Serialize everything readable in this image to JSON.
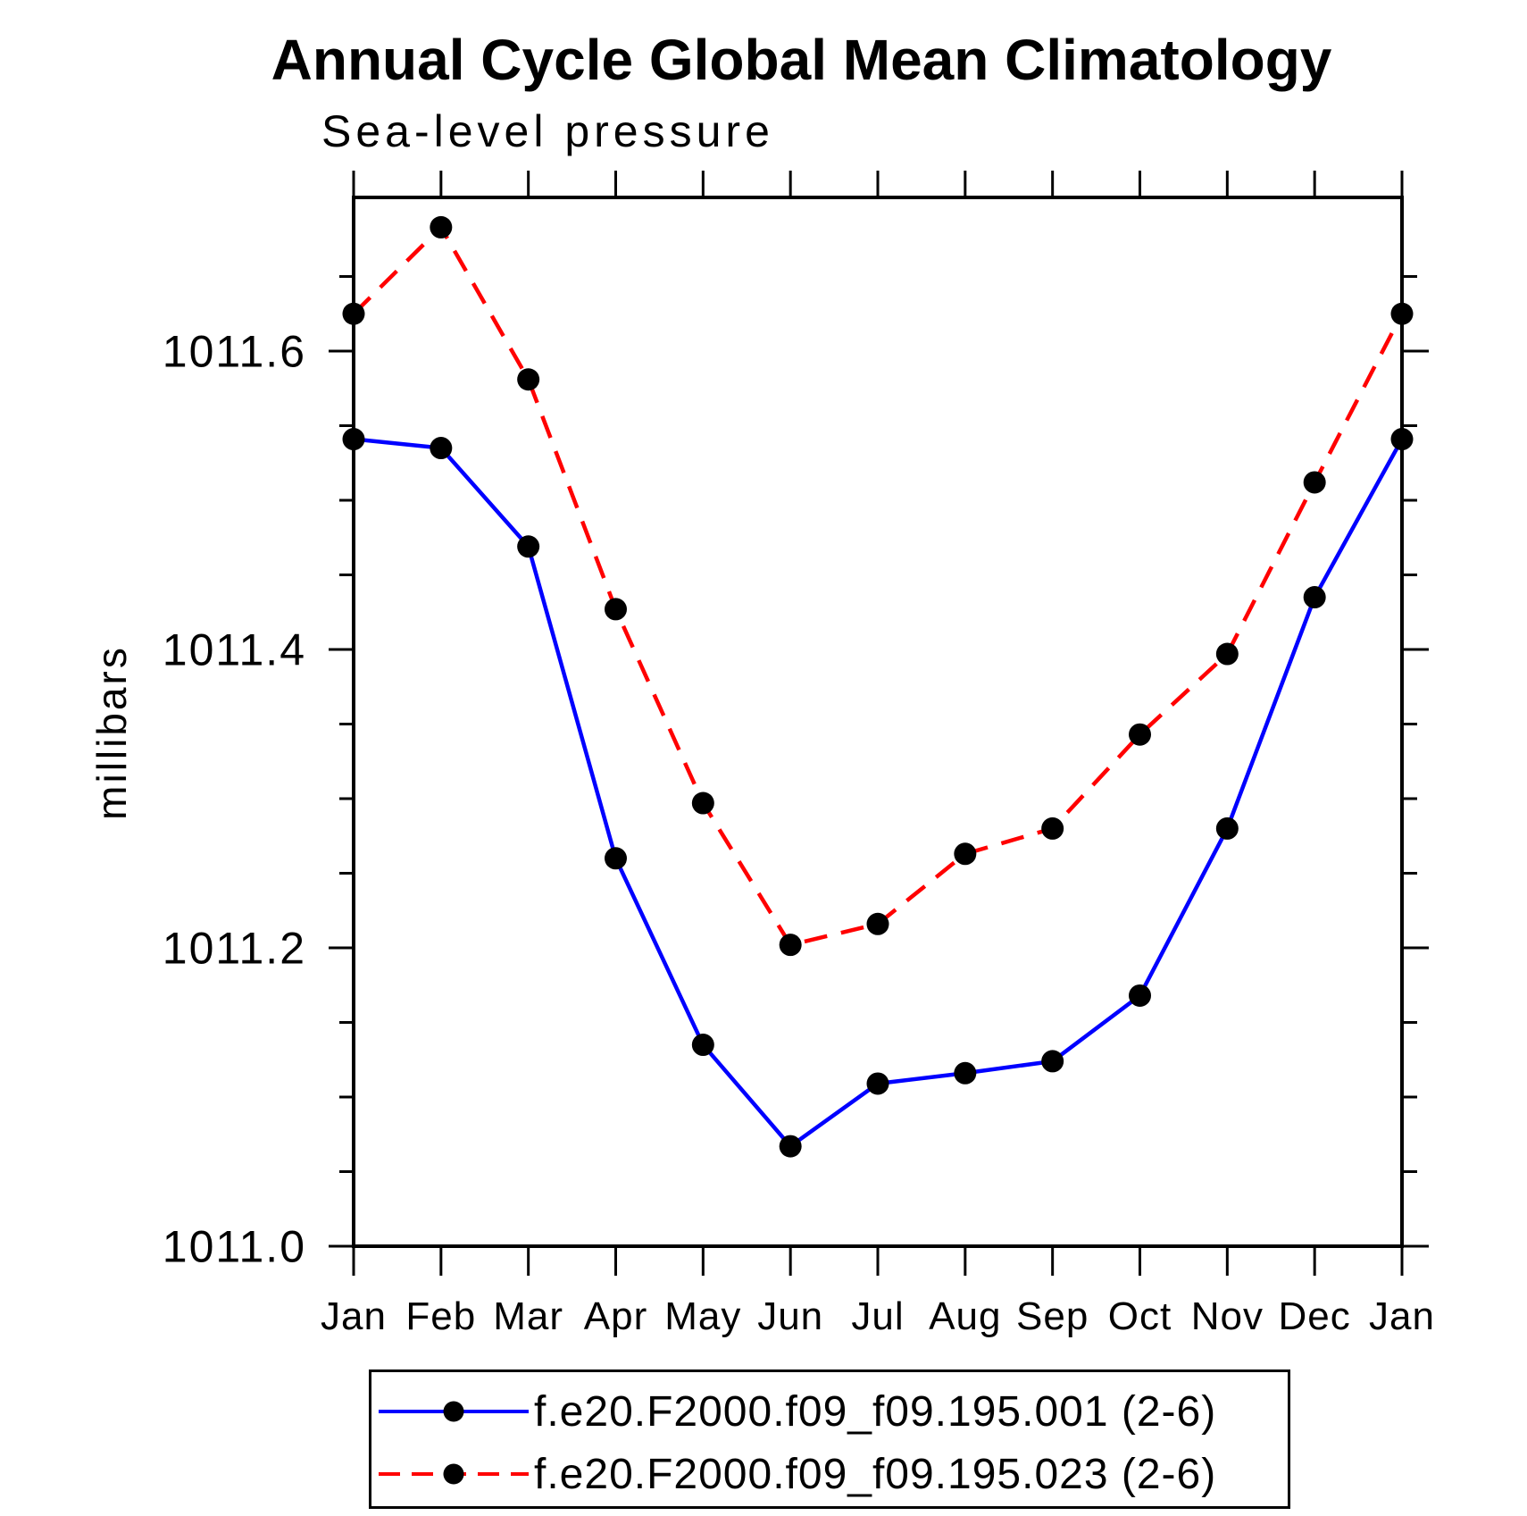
{
  "title": "Annual Cycle Global Mean Climatology",
  "subtitle": "Sea-level pressure",
  "chart_data": {
    "type": "line",
    "title": "Annual Cycle Global Mean Climatology",
    "subtitle": "Sea-level pressure",
    "ylabel": "millibars",
    "categories": [
      "Jan",
      "Feb",
      "Mar",
      "Apr",
      "May",
      "Jun",
      "Jul",
      "Aug",
      "Sep",
      "Oct",
      "Nov",
      "Dec",
      "Jan"
    ],
    "ylim": [
      1011.0,
      1011.703
    ],
    "yticks": {
      "major": [
        1011.0,
        1011.2,
        1011.4,
        1011.6
      ],
      "labels": [
        "1011.0",
        "1011.2",
        "1011.4",
        "1011.6"
      ],
      "minor_step": 0.05
    },
    "grid": false,
    "legend_position": "bottom-left-box",
    "axis_color": "#000000",
    "series": [
      {
        "name": "f.e20.F2000.f09_f09.195.001 (2-6)",
        "color": "#0000ff",
        "line_style": "solid",
        "marker": "filled-circle",
        "marker_color": "#000000",
        "values": [
          1011.541,
          1011.535,
          1011.469,
          1011.26,
          1011.135,
          1011.067,
          1011.109,
          1011.116,
          1011.124,
          1011.168,
          1011.28,
          1011.435,
          1011.541
        ]
      },
      {
        "name": "f.e20.F2000.f09_f09.195.023 (2-6)",
        "color": "#ff0000",
        "line_style": "dashed",
        "marker": "filled-circle",
        "marker_color": "#000000",
        "values": [
          1011.625,
          1011.683,
          1011.581,
          1011.427,
          1011.297,
          1011.202,
          1011.216,
          1011.263,
          1011.28,
          1011.343,
          1011.397,
          1011.512,
          1011.625
        ]
      }
    ]
  }
}
